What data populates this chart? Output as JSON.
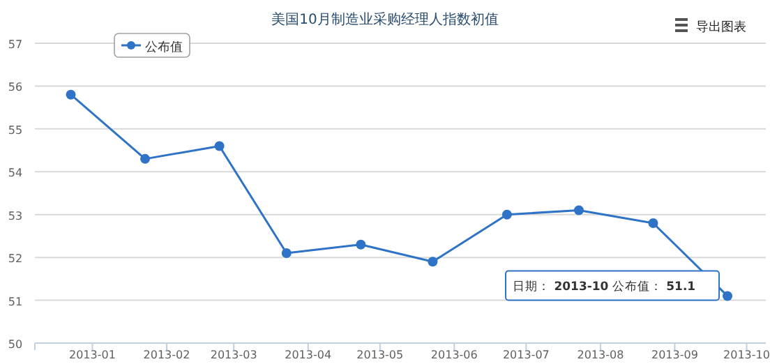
{
  "chart_data": {
    "type": "line",
    "title": "美国10月制造业采购经理人指数初值",
    "x": [
      "2012-12-23",
      "2013-01-23",
      "2013-02-23",
      "2013-03-23",
      "2013-04-23",
      "2013-05-23",
      "2013-06-23",
      "2013-07-23",
      "2013-08-23",
      "2013-09-23"
    ],
    "series": [
      {
        "name": "公布值",
        "color": "#2f73c7",
        "values": [
          55.8,
          54.3,
          54.6,
          52.1,
          52.3,
          51.9,
          53.0,
          53.1,
          52.8,
          51.1
        ]
      }
    ],
    "xlim": [
      "2012-12-08",
      "2013-10-09"
    ],
    "xticks": [
      {
        "value": "2013-01-01",
        "label": "2013-01"
      },
      {
        "value": "2013-02-01",
        "label": "2013-02"
      },
      {
        "value": "2013-03-01",
        "label": "2013-03"
      },
      {
        "value": "2013-04-01",
        "label": "2013-04"
      },
      {
        "value": "2013-05-01",
        "label": "2013-05"
      },
      {
        "value": "2013-06-01",
        "label": "2013-06"
      },
      {
        "value": "2013-07-01",
        "label": "2013-07"
      },
      {
        "value": "2013-08-01",
        "label": "2013-08"
      },
      {
        "value": "2013-09-01",
        "label": "2013-09"
      },
      {
        "value": "2013-10-01",
        "label": "2013-10"
      }
    ],
    "ylim": [
      50,
      57
    ],
    "yticks": [
      50,
      51,
      52,
      53,
      54,
      55,
      56,
      57
    ],
    "grid": "y",
    "legend": "top left",
    "marker": "circle",
    "line_style": "solid",
    "annotations": [
      "导出图表",
      {
        "text": "日期： **2013-10** 公布值： **51.1**",
        "x": "2013-09-23",
        "y": 51.1
      }
    ]
  }
}
